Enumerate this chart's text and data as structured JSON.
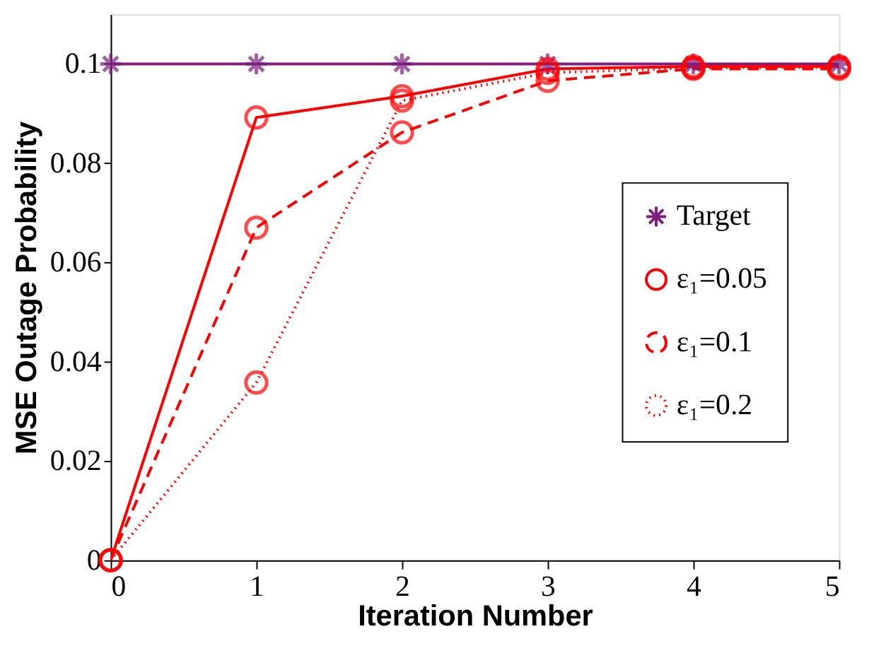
{
  "chart_data": {
    "type": "line",
    "xlabel": "Iteration Number",
    "ylabel": "MSE Outage Probability",
    "x": [
      0,
      1,
      2,
      3,
      4,
      5
    ],
    "series": [
      {
        "name": "Target",
        "color": "#7e1e80",
        "values": [
          0.1,
          0.1,
          0.1,
          0.1,
          0.1,
          0.1
        ],
        "marker": "cross",
        "line_style": "solid"
      },
      {
        "name": "ε₁=0.05",
        "color": "#ff0000",
        "values": [
          0,
          0.0892,
          0.0935,
          0.099,
          0.0995,
          0.0995
        ],
        "marker": "circle",
        "line_style": "solid"
      },
      {
        "name": "ε₁=0.1",
        "color": "#ff0000",
        "values": [
          0,
          0.067,
          0.0862,
          0.0966,
          0.099,
          0.099
        ],
        "marker": "circle",
        "line_style": "dashed"
      },
      {
        "name": "ε₁=0.2",
        "color": "#ff0000",
        "values": [
          0,
          0.0358,
          0.0926,
          0.0982,
          0.0992,
          0.0993
        ],
        "marker": "circle",
        "line_style": "dotted"
      }
    ],
    "xlim": [
      0,
      5
    ],
    "xticks": [
      0,
      1,
      2,
      3,
      4,
      5
    ],
    "ylim": [
      0,
      0.11
    ],
    "yticks": [
      0,
      0.02,
      0.04,
      0.06,
      0.08,
      0.1
    ],
    "grid": false,
    "legend": "right"
  }
}
